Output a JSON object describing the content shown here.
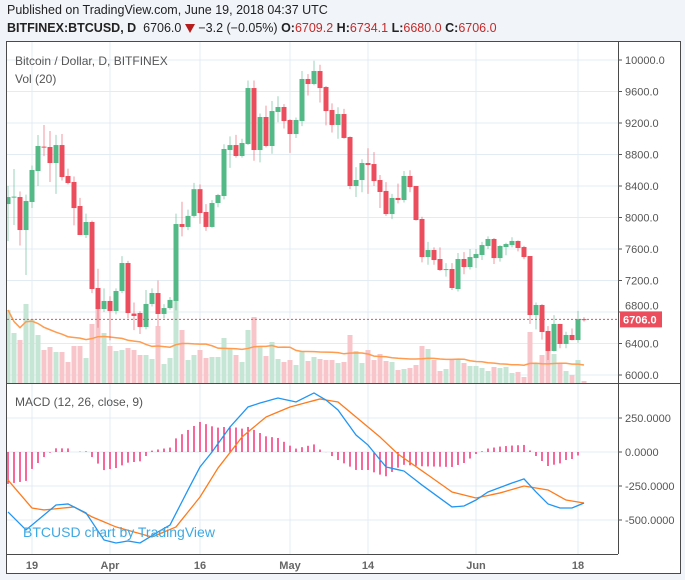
{
  "header": {
    "published": "Published on TradingView.com, June 19, 2018 04:37 UTC",
    "symbol": "BITFINEX:BTCUSD, D",
    "last": "6706.0",
    "change": "−3.2 (−0.05%)",
    "change_direction_icon": "triangle-down-icon",
    "o_label": "O:",
    "o": "6709.2",
    "h_label": "H:",
    "h": "6734.1",
    "l_label": "L:",
    "l": "6680.0",
    "c_label": "C:",
    "c": "6706.0"
  },
  "legend": {
    "main": "Bitcoin / Dollar, D, BITFINEX",
    "volume": "Vol (20)",
    "macd": "MACD (12, 26, close, 9)"
  },
  "watermark": "BTCUSD chart by TradingView",
  "colors": {
    "up": "#53b987",
    "down": "#eb4d5c",
    "vol_up": "#c6e6d5",
    "vol_down": "#f7c5ca",
    "vol_ma": "#ff9c4f",
    "macd": "#2196f3",
    "signal": "#ff7b1c",
    "histogram": "#f50057",
    "last_price": "#eb4d5c",
    "grid": "#e3ecf3"
  },
  "chart_data": [
    {
      "type": "candlestick",
      "title": "Bitcoin / Dollar, D, BITFINEX",
      "ylim": [
        5900,
        10150
      ],
      "y_ticks": [
        "10000.0",
        "9600.0",
        "9200.0",
        "8800.0",
        "8400.0",
        "8000.0",
        "7600.0",
        "7200.0",
        "6800.0",
        "6400.0",
        "6000.0"
      ],
      "x_ticks": [
        {
          "label": "19",
          "date": "2018-03-19"
        },
        {
          "label": "Apr",
          "date": "2018-04-01"
        },
        {
          "label": "16",
          "date": "2018-04-16"
        },
        {
          "label": "May",
          "date": "2018-05-01"
        },
        {
          "label": "14",
          "date": "2018-05-14"
        },
        {
          "label": "Jun",
          "date": "2018-06-01"
        },
        {
          "label": "18",
          "date": "2018-06-18"
        }
      ],
      "last_price_label": "6706.0",
      "last_price": 6706.0,
      "volume_ma_length": 20,
      "columns": [
        "date",
        "open",
        "high",
        "low",
        "close",
        "volume"
      ],
      "candles": [
        [
          "2018-03-15",
          8171,
          8400,
          7700,
          8260,
          73
        ],
        [
          "2018-03-16",
          8260,
          8616,
          7905,
          8265,
          50
        ],
        [
          "2018-03-17",
          8260,
          8330,
          7645,
          7841,
          43
        ],
        [
          "2018-03-18",
          7841,
          8290,
          7270,
          8210,
          79
        ],
        [
          "2018-03-19",
          8197,
          8660,
          8120,
          8603,
          64
        ],
        [
          "2018-03-20",
          8590,
          9048,
          8400,
          8908,
          48
        ],
        [
          "2018-03-21",
          8900,
          9175,
          8780,
          8895,
          33
        ],
        [
          "2018-03-22",
          8895,
          9099,
          8451,
          8692,
          36
        ],
        [
          "2018-03-23",
          8692,
          9050,
          8300,
          8920,
          31
        ],
        [
          "2018-03-24",
          8920,
          9060,
          8470,
          8514,
          31
        ],
        [
          "2018-03-25",
          8527,
          8620,
          8420,
          8438,
          21
        ],
        [
          "2018-03-26",
          8451,
          8520,
          7900,
          8120,
          37
        ],
        [
          "2018-03-27",
          8146,
          8250,
          7780,
          7778,
          37
        ],
        [
          "2018-03-28",
          7778,
          8050,
          7740,
          7943,
          25
        ],
        [
          "2018-03-29",
          7943,
          7960,
          7040,
          7092,
          59
        ],
        [
          "2018-03-30",
          7105,
          7350,
          6600,
          6838,
          74
        ],
        [
          "2018-03-31",
          6838,
          7100,
          6800,
          6940,
          50
        ],
        [
          "2018-04-01",
          6940,
          7000,
          6440,
          6813,
          37
        ],
        [
          "2018-04-02",
          6813,
          7100,
          6770,
          7067,
          32
        ],
        [
          "2018-04-03",
          7067,
          7510,
          7040,
          7422,
          33
        ],
        [
          "2018-04-04",
          7422,
          7450,
          6720,
          6787,
          35
        ],
        [
          "2018-04-05",
          6780,
          6920,
          6570,
          6750,
          33
        ],
        [
          "2018-04-06",
          6787,
          6810,
          6520,
          6610,
          28
        ],
        [
          "2018-04-07",
          6610,
          7080,
          6580,
          6902,
          28
        ],
        [
          "2018-04-08",
          6902,
          7100,
          6870,
          7041,
          24
        ],
        [
          "2018-04-09",
          7041,
          7200,
          6620,
          6775,
          57
        ],
        [
          "2018-04-10",
          6775,
          6900,
          6720,
          6850,
          19
        ],
        [
          "2018-04-11",
          6850,
          6990,
          6830,
          6953,
          25
        ],
        [
          "2018-04-12",
          6940,
          8050,
          6820,
          7917,
          82
        ],
        [
          "2018-04-13",
          7917,
          8200,
          7760,
          7880,
          53
        ],
        [
          "2018-04-14",
          7880,
          8100,
          7840,
          8020,
          23
        ],
        [
          "2018-04-15",
          8020,
          8440,
          8000,
          8360,
          28
        ],
        [
          "2018-04-16",
          8360,
          8420,
          7920,
          8057,
          33
        ],
        [
          "2018-04-17",
          8070,
          8170,
          7830,
          7880,
          25
        ],
        [
          "2018-04-18",
          7880,
          8220,
          7870,
          8184,
          26
        ],
        [
          "2018-04-19",
          8184,
          8300,
          8130,
          8286,
          26
        ],
        [
          "2018-04-20",
          8273,
          8930,
          8230,
          8870,
          45
        ],
        [
          "2018-04-21",
          8857,
          9030,
          8630,
          8920,
          34
        ],
        [
          "2018-04-22",
          8920,
          9050,
          8760,
          8781,
          28
        ],
        [
          "2018-04-23",
          8781,
          9000,
          8760,
          8946,
          21
        ],
        [
          "2018-04-24",
          8933,
          9740,
          8920,
          9644,
          53
        ],
        [
          "2018-04-25",
          9644,
          9740,
          8720,
          8857,
          66
        ],
        [
          "2018-04-26",
          8857,
          9320,
          8700,
          9276,
          37
        ],
        [
          "2018-04-27",
          9276,
          9420,
          8890,
          8908,
          27
        ],
        [
          "2018-04-28",
          8908,
          9480,
          8810,
          9352,
          41
        ],
        [
          "2018-04-29",
          9340,
          9540,
          9210,
          9403,
          24
        ],
        [
          "2018-04-30",
          9403,
          9440,
          9130,
          9225,
          21
        ],
        [
          "2018-05-01",
          9238,
          9250,
          8820,
          9060,
          23
        ],
        [
          "2018-05-02",
          9060,
          9270,
          9010,
          9238,
          18
        ],
        [
          "2018-05-03",
          9225,
          9860,
          9160,
          9759,
          32
        ],
        [
          "2018-05-04",
          9759,
          9820,
          9550,
          9695,
          22
        ],
        [
          "2018-05-05",
          9695,
          9990,
          9680,
          9860,
          26
        ],
        [
          "2018-05-06",
          9860,
          9940,
          9460,
          9644,
          24
        ],
        [
          "2018-05-07",
          9657,
          9670,
          9170,
          9352,
          23
        ],
        [
          "2018-05-08",
          9365,
          9450,
          9080,
          9175,
          23
        ],
        [
          "2018-05-09",
          9175,
          9400,
          9000,
          9314,
          20
        ],
        [
          "2018-05-10",
          9314,
          9380,
          9000,
          9010,
          21
        ],
        [
          "2018-05-11",
          9022,
          9030,
          8360,
          8400,
          48
        ],
        [
          "2018-05-12",
          8400,
          8640,
          8260,
          8476,
          32
        ],
        [
          "2018-05-13",
          8476,
          8740,
          8320,
          8692,
          20
        ],
        [
          "2018-05-14",
          8692,
          8880,
          8300,
          8667,
          33
        ],
        [
          "2018-05-15",
          8679,
          8830,
          8400,
          8463,
          23
        ],
        [
          "2018-05-16",
          8476,
          8540,
          8120,
          8324,
          29
        ],
        [
          "2018-05-17",
          8337,
          8450,
          8020,
          8044,
          22
        ],
        [
          "2018-05-18",
          8044,
          8300,
          7980,
          8248,
          21
        ],
        [
          "2018-05-19",
          8248,
          8430,
          8180,
          8222,
          13
        ],
        [
          "2018-05-20",
          8222,
          8590,
          8190,
          8527,
          14
        ],
        [
          "2018-05-21",
          8527,
          8600,
          8320,
          8387,
          15
        ],
        [
          "2018-05-22",
          8400,
          8400,
          7960,
          7968,
          18
        ],
        [
          "2018-05-23",
          7981,
          8010,
          7430,
          7498,
          37
        ],
        [
          "2018-05-24",
          7498,
          7690,
          7400,
          7587,
          34
        ],
        [
          "2018-05-25",
          7587,
          7620,
          7400,
          7460,
          23
        ],
        [
          "2018-05-26",
          7473,
          7620,
          7320,
          7333,
          12
        ],
        [
          "2018-05-27",
          7340,
          7420,
          7250,
          7345,
          14
        ],
        [
          "2018-05-28",
          7346,
          7420,
          7080,
          7105,
          24
        ],
        [
          "2018-05-29",
          7092,
          7550,
          7060,
          7473,
          24
        ],
        [
          "2018-05-30",
          7473,
          7560,
          7280,
          7371,
          20
        ],
        [
          "2018-05-31",
          7371,
          7600,
          7340,
          7498,
          17
        ],
        [
          "2018-06-01",
          7485,
          7600,
          7360,
          7536,
          17
        ],
        [
          "2018-06-02",
          7524,
          7690,
          7460,
          7650,
          15
        ],
        [
          "2018-06-03",
          7638,
          7760,
          7600,
          7727,
          12
        ],
        [
          "2018-06-04",
          7727,
          7740,
          7410,
          7485,
          16
        ],
        [
          "2018-06-05",
          7485,
          7650,
          7440,
          7638,
          15
        ],
        [
          "2018-06-06",
          7625,
          7680,
          7520,
          7663,
          16
        ],
        [
          "2018-06-07",
          7650,
          7750,
          7620,
          7702,
          10
        ],
        [
          "2018-06-08",
          7702,
          7710,
          7570,
          7613,
          11
        ],
        [
          "2018-06-09",
          7625,
          7640,
          7470,
          7498,
          6
        ],
        [
          "2018-06-10",
          7511,
          7511,
          6650,
          6762,
          51
        ],
        [
          "2018-06-11",
          6762,
          6920,
          6580,
          6889,
          20
        ],
        [
          "2018-06-12",
          6889,
          6900,
          6450,
          6546,
          28
        ],
        [
          "2018-06-13",
          6559,
          6620,
          6190,
          6305,
          32
        ],
        [
          "2018-06-14",
          6305,
          6760,
          6300,
          6648,
          29
        ],
        [
          "2018-06-15",
          6648,
          6650,
          6340,
          6394,
          19
        ],
        [
          "2018-06-16",
          6394,
          6550,
          6340,
          6508,
          12
        ],
        [
          "2018-06-17",
          6508,
          6590,
          6440,
          6444,
          8
        ],
        [
          "2018-06-18",
          6444,
          6815,
          6410,
          6709,
          23
        ],
        [
          "2018-06-19",
          6709.2,
          6734.1,
          6680.0,
          6706.0,
          2
        ]
      ]
    },
    {
      "type": "line",
      "title": "MACD (12, 26, close, 9)",
      "ylim": [
        -700,
        480
      ],
      "y_ticks": [
        {
          "label": "250.0000",
          "value": 250
        },
        {
          "label": "0.0000",
          "value": 0
        },
        {
          "label": "-250.0000",
          "value": -250
        },
        {
          "label": "-500.0000",
          "value": -500
        }
      ],
      "histogram": "macd minus signal",
      "series": [
        {
          "key": "macd",
          "points": [
            [
              "2018-03-15",
              -441
            ],
            [
              "2018-03-18",
              -573
            ],
            [
              "2018-03-20",
              -500
            ],
            [
              "2018-03-23",
              -390
            ],
            [
              "2018-03-25",
              -382
            ],
            [
              "2018-03-28",
              -448
            ],
            [
              "2018-03-31",
              -647
            ],
            [
              "2018-04-02",
              -669
            ],
            [
              "2018-04-04",
              -654
            ],
            [
              "2018-04-06",
              -669
            ],
            [
              "2018-04-09",
              -588
            ],
            [
              "2018-04-11",
              -537
            ],
            [
              "2018-04-14",
              -279
            ],
            [
              "2018-04-16",
              -110
            ],
            [
              "2018-04-18",
              0
            ],
            [
              "2018-04-21",
              184
            ],
            [
              "2018-04-24",
              331
            ],
            [
              "2018-04-26",
              360
            ],
            [
              "2018-04-29",
              397
            ],
            [
              "2018-05-02",
              368
            ],
            [
              "2018-05-05",
              434
            ],
            [
              "2018-05-07",
              382
            ],
            [
              "2018-05-09",
              309
            ],
            [
              "2018-05-12",
              125
            ],
            [
              "2018-05-14",
              51
            ],
            [
              "2018-05-17",
              -110
            ],
            [
              "2018-05-20",
              -140
            ],
            [
              "2018-05-23",
              -243
            ],
            [
              "2018-05-28",
              -404
            ],
            [
              "2018-05-30",
              -397
            ],
            [
              "2018-06-01",
              -353
            ],
            [
              "2018-06-03",
              -294
            ],
            [
              "2018-06-07",
              -228
            ],
            [
              "2018-06-09",
              -198
            ],
            [
              "2018-06-11",
              -294
            ],
            [
              "2018-06-13",
              -382
            ],
            [
              "2018-06-15",
              -412
            ],
            [
              "2018-06-17",
              -412
            ],
            [
              "2018-06-19",
              -375
            ]
          ]
        },
        {
          "key": "signal",
          "points": [
            [
              "2018-03-15",
              -206
            ],
            [
              "2018-03-19",
              -412
            ],
            [
              "2018-03-21",
              -426
            ],
            [
              "2018-03-26",
              -404
            ],
            [
              "2018-03-29",
              -477
            ],
            [
              "2018-04-02",
              -551
            ],
            [
              "2018-04-08",
              -625
            ],
            [
              "2018-04-12",
              -551
            ],
            [
              "2018-04-16",
              -331
            ],
            [
              "2018-04-19",
              -118
            ],
            [
              "2018-04-23",
              110
            ],
            [
              "2018-04-27",
              257
            ],
            [
              "2018-05-01",
              331
            ],
            [
              "2018-05-06",
              390
            ],
            [
              "2018-05-09",
              368
            ],
            [
              "2018-05-12",
              257
            ],
            [
              "2018-05-16",
              110
            ],
            [
              "2018-05-19",
              -15
            ],
            [
              "2018-05-24",
              -169
            ],
            [
              "2018-05-28",
              -294
            ],
            [
              "2018-06-01",
              -338
            ],
            [
              "2018-06-05",
              -301
            ],
            [
              "2018-06-09",
              -250
            ],
            [
              "2018-06-13",
              -279
            ],
            [
              "2018-06-16",
              -353
            ],
            [
              "2018-06-19",
              -375
            ]
          ]
        }
      ]
    }
  ]
}
